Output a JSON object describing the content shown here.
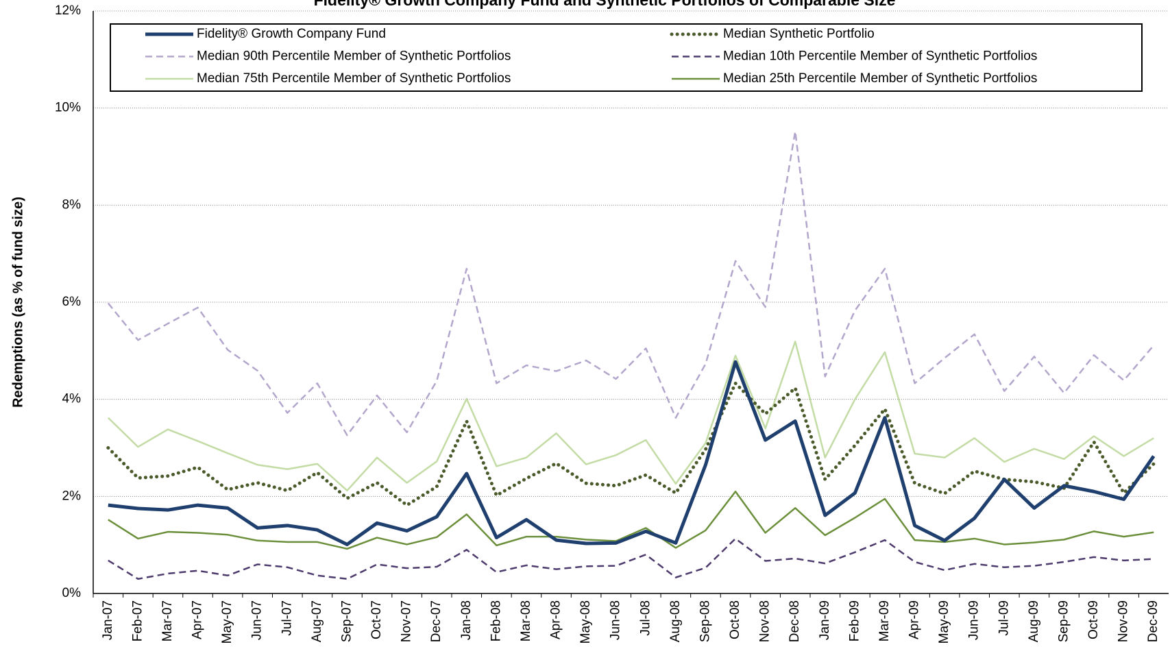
{
  "chart_data": {
    "type": "line",
    "title": "Fidelity® Growth Company Fund and Synthetic Portfolios of Comparable Size",
    "y_label": "Redemptions (as  % of fund size)",
    "categories": [
      "Jan-07",
      "Feb-07",
      "Mar-07",
      "Apr-07",
      "May-07",
      "Jun-07",
      "Jul-07",
      "Aug-07",
      "Sep-07",
      "Oct-07",
      "Nov-07",
      "Dec-07",
      "Jan-08",
      "Feb-08",
      "Mar-08",
      "Apr-08",
      "May-08",
      "Jun-08",
      "Jul-08",
      "Aug-08",
      "Sep-08",
      "Oct-08",
      "Nov-08",
      "Dec-08",
      "Jan-09",
      "Feb-09",
      "Mar-09",
      "Apr-09",
      "May-09",
      "Jun-09",
      "Jul-09",
      "Aug-09",
      "Sep-09",
      "Oct-09",
      "Nov-09",
      "Dec-09"
    ],
    "ylim": [
      0,
      12
    ],
    "yticks": [
      {
        "value": 0,
        "label": "0%"
      },
      {
        "value": 2,
        "label": "2%"
      },
      {
        "value": 4,
        "label": "4%"
      },
      {
        "value": 6,
        "label": "6%"
      },
      {
        "value": 8,
        "label": "8%"
      },
      {
        "value": 10,
        "label": "10%"
      },
      {
        "value": 12,
        "label": "12%"
      }
    ],
    "grid": true,
    "series": [
      {
        "name": "Fidelity® Growth Company Fund",
        "color": "#1f3f6e",
        "width": 5,
        "dash": "solid",
        "values": [
          1.82,
          1.75,
          1.72,
          1.82,
          1.76,
          1.35,
          1.4,
          1.31,
          1.01,
          1.45,
          1.29,
          1.58,
          2.47,
          1.15,
          1.52,
          1.1,
          1.03,
          1.04,
          1.28,
          1.04,
          2.65,
          4.77,
          3.16,
          3.55,
          1.61,
          2.07,
          3.62,
          1.4,
          1.09,
          1.55,
          2.35,
          1.76,
          2.22,
          2.1,
          1.94,
          2.83
        ]
      },
      {
        "name": "Median Synthetic Portfolio",
        "color": "#4a5a2a",
        "width": 5,
        "dash": "dotted",
        "values": [
          3.0,
          2.38,
          2.42,
          2.6,
          2.14,
          2.28,
          2.12,
          2.49,
          1.96,
          2.28,
          1.82,
          2.2,
          3.55,
          2.02,
          2.37,
          2.68,
          2.27,
          2.22,
          2.44,
          2.07,
          2.97,
          4.33,
          3.7,
          4.23,
          2.35,
          3.05,
          3.8,
          2.27,
          2.06,
          2.52,
          2.35,
          2.3,
          2.17,
          3.12,
          2.07,
          2.67
        ]
      },
      {
        "name": "Median 90th Percentile Member of Synthetic Portfolios",
        "color": "#b3a6cc",
        "width": 2.5,
        "dash": "dashed",
        "values": [
          5.98,
          5.22,
          5.56,
          5.89,
          5.02,
          4.59,
          3.72,
          4.33,
          3.26,
          4.08,
          3.32,
          4.38,
          6.69,
          4.33,
          4.7,
          4.58,
          4.8,
          4.42,
          5.05,
          3.62,
          4.73,
          6.85,
          5.9,
          9.52,
          4.47,
          5.83,
          6.69,
          4.33,
          4.85,
          5.34,
          4.17,
          4.88,
          4.13,
          4.91,
          4.39,
          5.11
        ]
      },
      {
        "name": "Median 10th Percentile Member of Synthetic Portfolios",
        "color": "#4d3b6e",
        "width": 2.5,
        "dash": "dashed",
        "values": [
          0.68,
          0.3,
          0.41,
          0.47,
          0.37,
          0.6,
          0.54,
          0.37,
          0.3,
          0.6,
          0.52,
          0.55,
          0.9,
          0.44,
          0.58,
          0.5,
          0.56,
          0.57,
          0.8,
          0.33,
          0.53,
          1.13,
          0.67,
          0.72,
          0.62,
          0.85,
          1.1,
          0.65,
          0.48,
          0.61,
          0.54,
          0.57,
          0.65,
          0.75,
          0.68,
          0.71
        ]
      },
      {
        "name": "Median 75th Percentile Member of Synthetic Portfolios",
        "color": "#c3dba4",
        "width": 2.5,
        "dash": "solid",
        "values": [
          3.62,
          3.02,
          3.38,
          3.14,
          2.89,
          2.65,
          2.56,
          2.67,
          2.12,
          2.8,
          2.28,
          2.72,
          4.01,
          2.62,
          2.8,
          3.3,
          2.66,
          2.85,
          3.16,
          2.26,
          3.1,
          4.9,
          3.4,
          5.19,
          2.8,
          4.0,
          4.97,
          2.88,
          2.8,
          3.2,
          2.71,
          2.98,
          2.77,
          3.24,
          2.83,
          3.2
        ]
      },
      {
        "name": "Median 25th Percentile Member of Synthetic Portfolios",
        "color": "#6b8f3a",
        "width": 2.5,
        "dash": "solid",
        "values": [
          1.52,
          1.13,
          1.27,
          1.25,
          1.21,
          1.09,
          1.06,
          1.06,
          0.92,
          1.15,
          1.01,
          1.16,
          1.63,
          0.99,
          1.17,
          1.17,
          1.11,
          1.08,
          1.35,
          0.94,
          1.3,
          2.1,
          1.25,
          1.76,
          1.2,
          1.56,
          1.95,
          1.1,
          1.06,
          1.13,
          1.01,
          1.05,
          1.11,
          1.28,
          1.17,
          1.26
        ]
      }
    ]
  }
}
